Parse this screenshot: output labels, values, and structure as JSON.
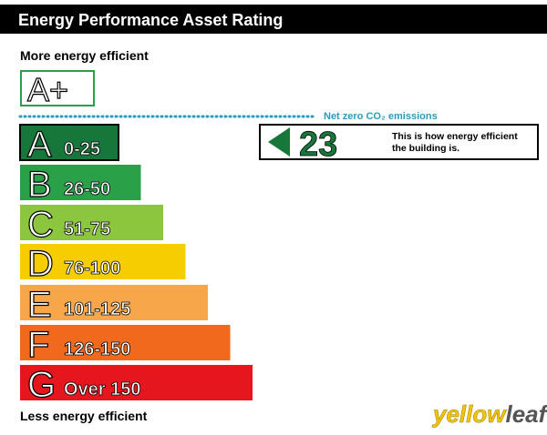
{
  "header": {
    "title": "Energy Performance Asset Rating"
  },
  "top_label": "More energy efficient",
  "bottom_label": "Less energy efficient",
  "net_zero": {
    "letter": "A+",
    "label": "Net zero CO₂ emissions"
  },
  "bands": [
    {
      "letter": "A",
      "range": "0-25",
      "color": "#17773a"
    },
    {
      "letter": "B",
      "range": "26-50",
      "color": "#2aa048"
    },
    {
      "letter": "C",
      "range": "51-75",
      "color": "#8cc63e"
    },
    {
      "letter": "D",
      "range": "76-100",
      "color": "#f5cd00"
    },
    {
      "letter": "E",
      "range": "101-125",
      "color": "#f7a74a"
    },
    {
      "letter": "F",
      "range": "126-150",
      "color": "#f0691c"
    },
    {
      "letter": "G",
      "range": "Over 150",
      "color": "#e5161d"
    }
  ],
  "current": {
    "rating": "23",
    "note_line1": "This is how energy efficient",
    "note_line2": "the building is."
  },
  "logo": {
    "part1": "yellow",
    "part2": "leaf"
  }
}
